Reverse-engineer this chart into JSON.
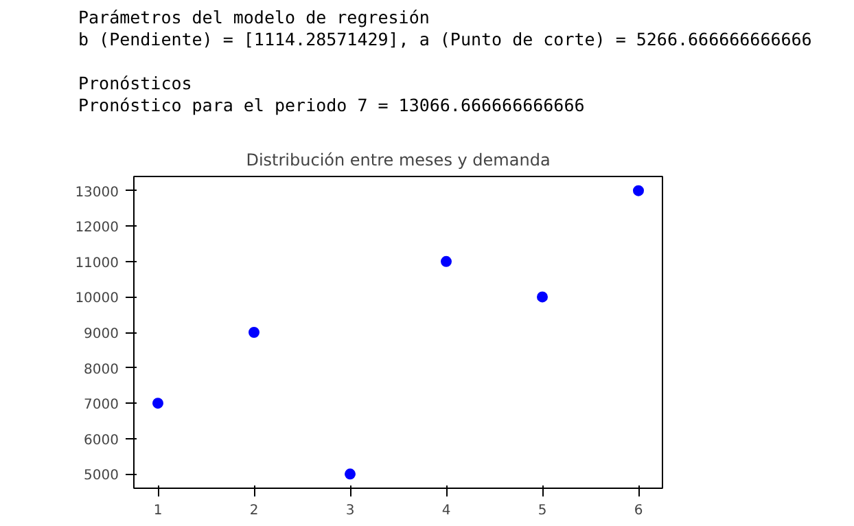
{
  "chart_data": {
    "type": "scatter",
    "title": "Distribución entre meses y demanda",
    "annotations": [
      "Parámetros del modelo de regresión",
      "b (Pendiente) = [1114.28571429], a (Punto de corte) = 5266.666666666666",
      "Pronósticos",
      "Pronóstico para el periodo 7 = 13066.666666666666"
    ],
    "x": [
      1,
      2,
      3,
      4,
      5,
      6
    ],
    "series": [
      {
        "color": "#0000ff",
        "values": [
          7000,
          9000,
          5000,
          11000,
          10000,
          13000
        ]
      }
    ],
    "xlim": [
      0.75,
      6.25
    ],
    "ylim": [
      4600,
      13400
    ],
    "xticks": [
      1,
      2,
      3,
      4,
      5,
      6
    ],
    "yticks": [
      5000,
      6000,
      7000,
      8000,
      9000,
      10000,
      11000,
      12000,
      13000
    ],
    "marker": "circle",
    "grid": false
  }
}
